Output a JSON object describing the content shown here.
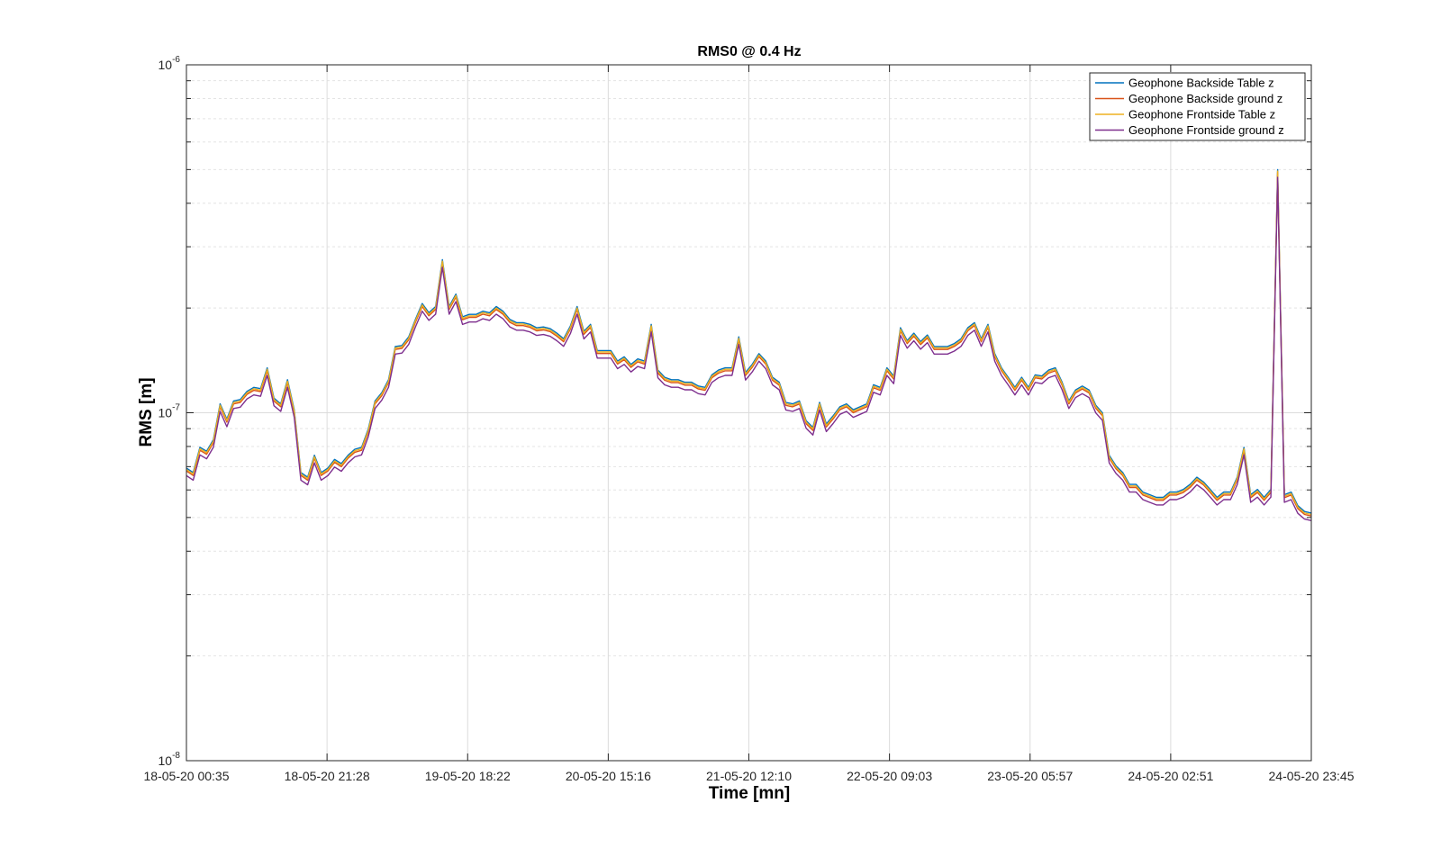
{
  "chart_data": {
    "type": "line",
    "title": "RMS0 @ 0.4 Hz",
    "xlabel": "Time [mn]",
    "ylabel": "RMS [m]",
    "yscale": "log",
    "ylim": [
      1e-08,
      1e-06
    ],
    "y_ticks": [
      {
        "value": 1e-08,
        "mantissa": "10",
        "exponent": "-8"
      },
      {
        "value": 1e-07,
        "mantissa": "10",
        "exponent": "-7"
      },
      {
        "value": 1e-06,
        "mantissa": "10",
        "exponent": "-6"
      }
    ],
    "x_ticks": [
      "18-05-20 00:35",
      "18-05-20 21:28",
      "19-05-20 18:22",
      "20-05-20 15:16",
      "21-05-20 12:10",
      "22-05-20 09:03",
      "23-05-20 05:57",
      "24-05-20 02:51",
      "24-05-20 23:45"
    ],
    "grid": true,
    "legend_position": "top-right",
    "series": [
      {
        "name": "Geophone Backside Table z",
        "color": "#0072BD",
        "offset": 1.02
      },
      {
        "name": "Geophone Backside ground z",
        "color": "#D95319",
        "offset": 1.0
      },
      {
        "name": "Geophone Frontside Table z",
        "color": "#EDB120",
        "offset": 1.01
      },
      {
        "name": "Geophone Frontside ground z",
        "color": "#7E2F8E",
        "offset": 0.97
      }
    ],
    "x_start": "18-05-20 00:35",
    "x_end": "24-05-20 23:45",
    "values": [
      6.8e-08,
      6.6e-08,
      7.8e-08,
      7.6e-08,
      8.2e-08,
      1.04e-07,
      9.4e-08,
      1.06e-07,
      1.07e-07,
      1.13e-07,
      1.16e-07,
      1.15e-07,
      1.32e-07,
      1.08e-07,
      1.04e-07,
      1.22e-07,
      1e-07,
      6.6e-08,
      6.4e-08,
      7.4e-08,
      6.6e-08,
      6.8e-08,
      7.2e-08,
      7e-08,
      7.4e-08,
      7.7e-08,
      7.8e-08,
      8.8e-08,
      1.06e-07,
      1.12e-07,
      1.22e-07,
      1.52e-07,
      1.53e-07,
      1.62e-07,
      1.82e-07,
      2.02e-07,
      1.9e-07,
      1.98e-07,
      2.7e-07,
      1.98e-07,
      2.15e-07,
      1.85e-07,
      1.88e-07,
      1.88e-07,
      1.92e-07,
      1.9e-07,
      1.98e-07,
      1.92e-07,
      1.82e-07,
      1.78e-07,
      1.78e-07,
      1.76e-07,
      1.72e-07,
      1.73e-07,
      1.71e-07,
      1.66e-07,
      1.6e-07,
      1.74e-07,
      1.98e-07,
      1.68e-07,
      1.76e-07,
      1.48e-07,
      1.48e-07,
      1.48e-07,
      1.38e-07,
      1.42e-07,
      1.35e-07,
      1.4e-07,
      1.38e-07,
      1.76e-07,
      1.3e-07,
      1.24e-07,
      1.22e-07,
      1.22e-07,
      1.2e-07,
      1.2e-07,
      1.17e-07,
      1.16e-07,
      1.26e-07,
      1.3e-07,
      1.32e-07,
      1.32e-07,
      1.62e-07,
      1.28e-07,
      1.35e-07,
      1.45e-07,
      1.38e-07,
      1.24e-07,
      1.2e-07,
      1.05e-07,
      1.04e-07,
      1.06e-07,
      9.3e-08,
      8.9e-08,
      1.05e-07,
      9.1e-08,
      9.6e-08,
      1.02e-07,
      1.04e-07,
      1e-07,
      1.02e-07,
      1.04e-07,
      1.18e-07,
      1.16e-07,
      1.32e-07,
      1.25e-07,
      1.72e-07,
      1.58e-07,
      1.66e-07,
      1.57e-07,
      1.64e-07,
      1.52e-07,
      1.52e-07,
      1.52e-07,
      1.55e-07,
      1.6e-07,
      1.72e-07,
      1.78e-07,
      1.6e-07,
      1.76e-07,
      1.45e-07,
      1.32e-07,
      1.24e-07,
      1.16e-07,
      1.24e-07,
      1.16e-07,
      1.26e-07,
      1.25e-07,
      1.3e-07,
      1.32e-07,
      1.2e-07,
      1.06e-07,
      1.14e-07,
      1.17e-07,
      1.14e-07,
      1.03e-07,
      9.8e-08,
      7.4e-08,
      6.9e-08,
      6.6e-08,
      6.1e-08,
      6.1e-08,
      5.8e-08,
      5.7e-08,
      5.6e-08,
      5.6e-08,
      5.8e-08,
      5.8e-08,
      5.9e-08,
      6.1e-08,
      6.4e-08,
      6.2e-08,
      5.9e-08,
      5.6e-08,
      5.8e-08,
      5.8e-08,
      6.4e-08,
      7.8e-08,
      5.7e-08,
      5.9e-08,
      5.6e-08,
      5.9e-08,
      4.9e-07,
      5.7e-08,
      5.8e-08,
      5.3e-08,
      5.1e-08,
      5.05e-08
    ]
  }
}
